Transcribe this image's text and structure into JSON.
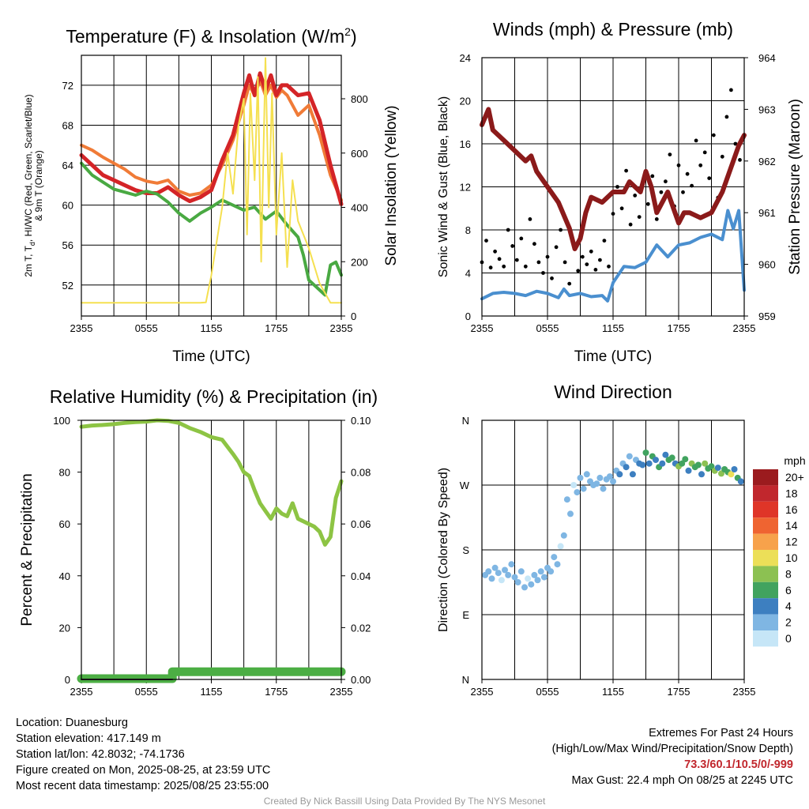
{
  "chart_data": [
    {
      "type": "line",
      "title": "Temperature (F) & Insolation (W/m",
      "title_sup": "2",
      "title_close": ")",
      "ylabel_parts": [
        "2m T, T",
        "d",
        ", HI/WC (Red, Green, Scarlet/Blue)"
      ],
      "ylabel_line2": "& 9m T (Orange)",
      "y2label": "Solar Insolation (Yellow)",
      "xlabel": "Time (UTC)",
      "x_ticks": [
        "2355",
        "0555",
        "1155",
        "1755",
        "2355"
      ],
      "ylim": [
        48.9,
        75
      ],
      "y_ticks": [
        52,
        56,
        60,
        64,
        68,
        72
      ],
      "y2lim": [
        0,
        960
      ],
      "y2_ticks": [
        0,
        200,
        400,
        600,
        800
      ],
      "grid": true,
      "series": [
        {
          "color": "#f07b37",
          "axis": "left",
          "x": [
            0,
            1,
            2,
            3,
            4,
            5,
            6,
            7,
            8,
            9,
            10,
            11,
            12,
            13,
            14,
            15,
            15.5,
            16,
            16.5,
            17,
            17.5,
            18,
            18.5,
            19,
            20,
            21,
            22,
            23,
            24
          ],
          "values": [
            66,
            65.5,
            64.8,
            64.2,
            63.6,
            62.8,
            62.4,
            62.2,
            62.5,
            61.4,
            61,
            61.2,
            62,
            64,
            66.5,
            70,
            72,
            71,
            72.5,
            71,
            72,
            70.8,
            71.5,
            71,
            69,
            70,
            67,
            63,
            60.5
          ]
        },
        {
          "color": "#d42427",
          "axis": "left",
          "x": [
            0,
            1,
            2,
            3,
            4,
            5,
            6,
            7,
            8,
            9,
            10,
            11,
            12,
            13,
            14,
            15,
            15.5,
            16,
            16.5,
            17,
            17.5,
            18,
            18.5,
            19,
            20,
            21,
            22,
            23,
            24
          ],
          "values": [
            65,
            64,
            63,
            62.5,
            62,
            61.5,
            61.2,
            61.2,
            61.8,
            61,
            60.4,
            60.8,
            61.5,
            64.5,
            67,
            71.2,
            73,
            71,
            73.2,
            71.5,
            73,
            71,
            72,
            72,
            71,
            71.2,
            68.5,
            64,
            60.1
          ]
        },
        {
          "color": "#49a942",
          "axis": "left",
          "x": [
            0,
            1,
            2,
            3,
            4,
            5,
            6,
            7,
            8,
            9,
            10,
            11,
            12,
            13,
            14,
            15,
            16,
            17,
            18,
            19,
            20,
            20.5,
            21,
            22,
            22.5,
            23,
            23.5,
            24
          ],
          "values": [
            64.2,
            63,
            62.3,
            61.6,
            61.3,
            61,
            61.4,
            61.1,
            60.3,
            59.2,
            58.4,
            59.2,
            59.8,
            60.5,
            60,
            59.5,
            59.8,
            58.6,
            59.4,
            58,
            56.8,
            55,
            52.5,
            51.5,
            51,
            54,
            54.3,
            53
          ]
        },
        {
          "color": "#f5e050",
          "axis": "right",
          "x": [
            0,
            8.5,
            9,
            10,
            11,
            11.5,
            12,
            13,
            13.5,
            14,
            14.5,
            15,
            15.3,
            15.6,
            16,
            16.3,
            16.6,
            17,
            17.3,
            17.6,
            18,
            18.5,
            19,
            19.5,
            20,
            21,
            22,
            23,
            24
          ],
          "values": [
            0,
            0,
            5,
            10,
            20,
            50,
            150,
            400,
            600,
            450,
            700,
            800,
            300,
            820,
            500,
            880,
            200,
            950,
            400,
            820,
            300,
            600,
            180,
            500,
            350,
            250,
            120,
            40,
            0
          ]
        }
      ]
    },
    {
      "type": "scatter",
      "title": "Winds (mph) & Pressure (mb)",
      "ylabel": "Sonic Wind & Gust (Blue, Black)",
      "y2label": "Station Pressure (Maroon)",
      "xlabel": "Time (UTC)",
      "x_ticks": [
        "2355",
        "0555",
        "1155",
        "1755",
        "2355"
      ],
      "ylim": [
        0,
        24
      ],
      "y_ticks": [
        0,
        4,
        8,
        12,
        16,
        20,
        24
      ],
      "y2lim": [
        959,
        964
      ],
      "y2_ticks": [
        959,
        960,
        961,
        962,
        963,
        964
      ],
      "grid": true,
      "series": [
        {
          "color": "#8b1a1a",
          "axis": "right",
          "x": [
            0,
            0.6,
            1,
            2,
            3,
            4,
            4.5,
            5,
            6,
            7,
            8,
            8.5,
            9,
            9.5,
            10,
            11,
            12,
            13,
            13.5,
            14,
            14.5,
            15,
            15.5,
            16,
            17,
            17.5,
            18,
            18.5,
            19,
            20,
            21,
            22,
            23,
            23.5,
            24
          ],
          "values": [
            962.7,
            963,
            962.6,
            962.4,
            962.2,
            962,
            962.1,
            961.8,
            961.5,
            961.2,
            960.7,
            960.3,
            960.5,
            961,
            961.3,
            961.2,
            961.4,
            961.4,
            961.6,
            961.5,
            961.4,
            961.8,
            961.5,
            961,
            961.4,
            961.1,
            960.8,
            961,
            961,
            960.9,
            961,
            961.4,
            962,
            962.3,
            962.5
          ]
        },
        {
          "color": "#4a8fcf",
          "axis": "left",
          "x": [
            0,
            1,
            2,
            3,
            4,
            5,
            6,
            7,
            7.5,
            8,
            9,
            10,
            11,
            11.5,
            12,
            13,
            14,
            15,
            16,
            17,
            18,
            19,
            20,
            21,
            22,
            22.5,
            23,
            23.5,
            24
          ],
          "values": [
            1.6,
            2.1,
            2.2,
            2.1,
            1.9,
            2.3,
            2.1,
            1.7,
            2.5,
            1.9,
            2.1,
            1.8,
            1.9,
            1.4,
            3.1,
            4.6,
            4.5,
            5,
            6.6,
            5.5,
            6.6,
            6.8,
            7.3,
            7.6,
            7.1,
            9.8,
            8.1,
            9.8,
            2.4
          ]
        },
        {
          "color": "#000000",
          "axis": "left",
          "mode": "dots",
          "x": [
            0,
            0.4,
            0.8,
            1.2,
            1.6,
            2,
            2.4,
            2.8,
            3.2,
            3.6,
            4,
            4.4,
            4.8,
            5.2,
            5.6,
            6,
            6.4,
            6.8,
            7.2,
            7.6,
            8,
            8.4,
            8.8,
            9.2,
            9.6,
            10,
            10.4,
            10.8,
            11.2,
            11.6,
            12,
            12.4,
            12.8,
            13.2,
            13.6,
            14,
            14.4,
            14.8,
            15.2,
            15.6,
            16,
            16.4,
            16.8,
            17.2,
            17.6,
            18,
            18.4,
            18.8,
            19.2,
            19.6,
            20,
            20.4,
            20.8,
            21.2,
            21.6,
            22,
            22.4,
            22.8,
            23.2,
            23.6
          ],
          "values": [
            5,
            7,
            4.5,
            6,
            5.3,
            4.6,
            8,
            6.5,
            5.2,
            7.2,
            4.6,
            9,
            6.7,
            5,
            4,
            5.5,
            3.5,
            6.4,
            8,
            5,
            3,
            6.8,
            4.2,
            5.5,
            4.8,
            6,
            4.3,
            5.2,
            7,
            4.6,
            9.5,
            12,
            10,
            13.5,
            8.5,
            11.2,
            9.2,
            12.6,
            10.4,
            13,
            9,
            11.5,
            12.5,
            15,
            10.2,
            14,
            11.5,
            13.2,
            12.1,
            16.3,
            14,
            15.2,
            12.8,
            16.8,
            11,
            14.8,
            18.5,
            21,
            16,
            14.5
          ]
        }
      ]
    },
    {
      "type": "line",
      "title": "Relative Humidity (%) & Precipitation (in)",
      "ylabel": "Percent & Precipitation",
      "y2label": "",
      "xlabel": "",
      "x_ticks": [
        "2355",
        "0555",
        "1155",
        "1755",
        "2355"
      ],
      "ylim": [
        0,
        100
      ],
      "y_ticks": [
        0,
        20,
        40,
        60,
        80,
        100
      ],
      "y2lim": [
        0,
        0.1
      ],
      "y2_ticks": [
        "0.00",
        "0.02",
        "0.04",
        "0.06",
        "0.08",
        "0.10"
      ],
      "grid": true,
      "series": [
        {
          "color": "#8dc444",
          "axis": "left",
          "x": [
            0,
            1,
            2,
            3,
            4,
            5,
            6,
            7,
            8,
            9,
            10,
            11,
            12,
            13,
            14,
            14.5,
            15,
            15.5,
            16,
            16.5,
            17,
            17.5,
            18,
            18.5,
            19,
            19.5,
            20,
            20.5,
            21,
            21.5,
            22,
            22.5,
            23,
            23.5,
            24
          ],
          "values": [
            97.5,
            98,
            98.2,
            98.5,
            99,
            99.3,
            99.5,
            100,
            99.8,
            99,
            97,
            95.5,
            93.5,
            92.5,
            87,
            84,
            80,
            78.5,
            73,
            68,
            65,
            62,
            66,
            64,
            63,
            68,
            62,
            61,
            60,
            59,
            57,
            52,
            55,
            70,
            76.5
          ]
        },
        {
          "color": "#4cae44",
          "axis": "left",
          "x": [
            0,
            8.4,
            8.4,
            24
          ],
          "values": [
            0.3,
            0.3,
            3,
            3
          ]
        },
        {
          "color": "#333333",
          "axis": "left",
          "x": [
            0,
            8.4
          ],
          "values": [
            0,
            0
          ]
        }
      ]
    },
    {
      "type": "scatter",
      "title": "Wind Direction",
      "ylabel": "Direction (Colored By Speed)",
      "xlabel": "",
      "x_ticks": [
        "2355",
        "0555",
        "1155",
        "1755",
        "2355"
      ],
      "ylim": [
        0,
        360
      ],
      "y_ticks": [
        {
          "v": 0,
          "t": "N"
        },
        {
          "v": 90,
          "t": "E"
        },
        {
          "v": 180,
          "t": "S"
        },
        {
          "v": 270,
          "t": "W"
        },
        {
          "v": 360,
          "t": "N"
        }
      ],
      "grid": true,
      "legend_title": "mph",
      "legend_labels": [
        "20+",
        "18",
        "16",
        "14",
        "12",
        "10",
        "8",
        "6",
        "4",
        "2",
        "0"
      ],
      "legend_colors": [
        "#9b1b1e",
        "#c1272d",
        "#df3528",
        "#ef6431",
        "#f7a24b",
        "#ecdf58",
        "#8cc152",
        "#41a35f",
        "#3d7fc0",
        "#7fb6e3",
        "#c6e6f7"
      ],
      "series": [
        {
          "name": "",
          "x": [
            0.3,
            0.6,
            0.9,
            1.2,
            1.5,
            1.8,
            2.1,
            2.4,
            2.7,
            3.0,
            3.3,
            3.6,
            3.9,
            4.2,
            4.5,
            4.8,
            5.1,
            5.4,
            5.7,
            6.0,
            6.3,
            6.6,
            6.9,
            7.2,
            7.5,
            7.8,
            8.1,
            8.4,
            8.7,
            9.0,
            9.3,
            9.6,
            9.9,
            10.2,
            10.5,
            10.8,
            11.1,
            11.4,
            11.7,
            12.0,
            12.3,
            12.6,
            12.9,
            13.2,
            13.5,
            13.8,
            14.1,
            14.4,
            14.7,
            15.0,
            15.3,
            15.6,
            15.9,
            16.2,
            16.5,
            16.8,
            17.1,
            17.4,
            17.7,
            18.0,
            18.3,
            18.6,
            18.9,
            19.2,
            19.5,
            19.8,
            20.1,
            20.4,
            20.7,
            21.0,
            21.3,
            21.6,
            21.9,
            22.2,
            22.5,
            22.8,
            23.1,
            23.4,
            23.7
          ],
          "values": [
            145,
            150,
            140,
            155,
            148,
            138,
            152,
            145,
            160,
            142,
            135,
            150,
            128,
            140,
            132,
            145,
            138,
            150,
            142,
            155,
            150,
            170,
            160,
            185,
            200,
            250,
            230,
            270,
            260,
            280,
            265,
            285,
            275,
            270,
            272,
            280,
            265,
            278,
            282,
            275,
            290,
            285,
            300,
            295,
            310,
            285,
            305,
            300,
            298,
            315,
            300,
            310,
            305,
            295,
            300,
            312,
            305,
            308,
            300,
            296,
            300,
            306,
            290,
            300,
            295,
            298,
            285,
            300,
            293,
            296,
            290,
            294,
            286,
            292,
            288,
            285,
            292,
            280,
            275
          ],
          "speeds": [
            1,
            1,
            1,
            1,
            1,
            0.5,
            1,
            1,
            1,
            1,
            1.5,
            1,
            1,
            0.5,
            1,
            1,
            1,
            1,
            1.5,
            1,
            1,
            1,
            1,
            0.5,
            1,
            1,
            1,
            0.5,
            1,
            2,
            1,
            1,
            1,
            1,
            1.5,
            1,
            1,
            1,
            2,
            1.5,
            2.5,
            3,
            2,
            3.5,
            2,
            4,
            2.5,
            3.5,
            3,
            5,
            4,
            6,
            3.5,
            5,
            4,
            3,
            6,
            5,
            4,
            7,
            5,
            6,
            3.5,
            7,
            6,
            5,
            4,
            7,
            6,
            5,
            8,
            4,
            7,
            6,
            5,
            10,
            4,
            6,
            3
          ]
        }
      ]
    }
  ],
  "footer": {
    "location": "Location: Duanesburg",
    "elevation": "Station elevation: 417.149 m",
    "latlon": "Station lat/lon: 42.8032; -74.1736",
    "created": "Figure created on Mon, 2025-08-25, at 23:59 UTC",
    "recent": "Most recent data timestamp: 2025/08/25 23:55:00",
    "ext_title": "Extremes For Past 24 Hours",
    "ext_subtitle": "(High/Low/Max Wind/Precipitation/Snow Depth)",
    "ext_values": "73.3/60.1/10.5/0/-999",
    "max_gust": "Max Gust: 22.4 mph On 08/25 at 2245 UTC",
    "credit": "Created By Nick Bassill Using Data Provided By The NYS Mesonet"
  }
}
